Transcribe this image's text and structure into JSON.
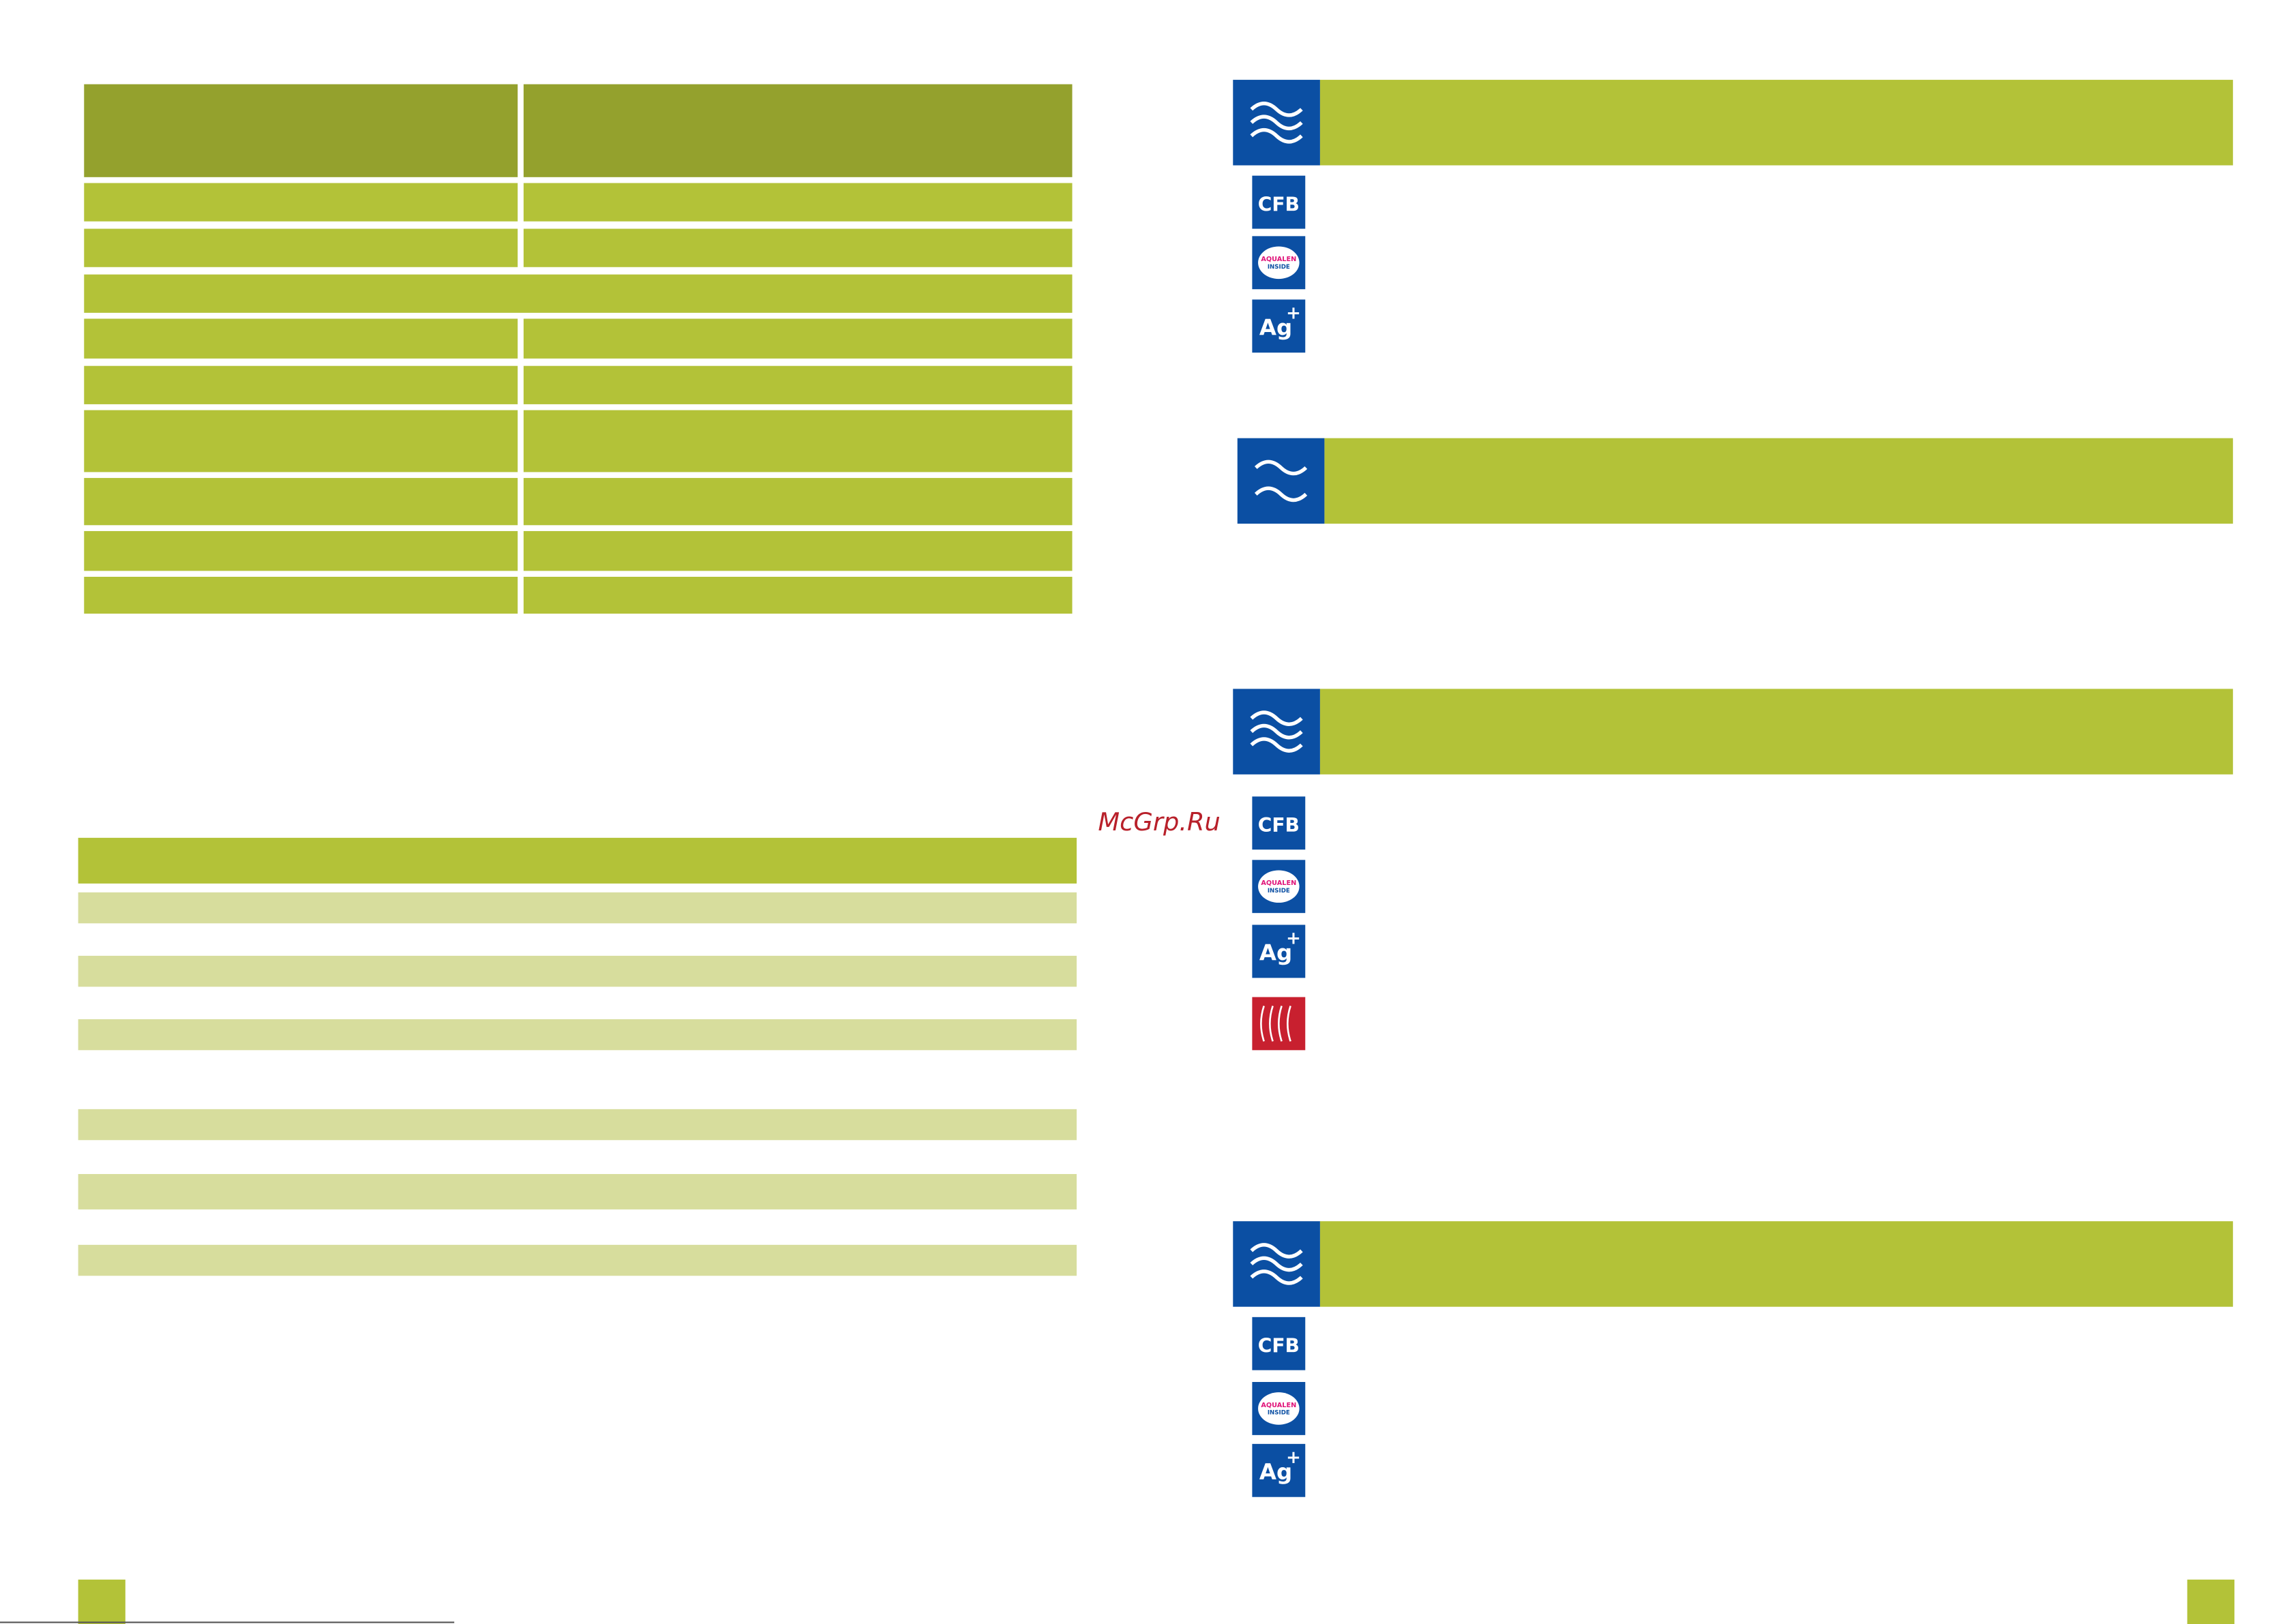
{
  "watermark": "McGrp.Ru",
  "sections": [
    {
      "badges": [
        {
          "main": "CFB"
        },
        {
          "main": "AQUALEN",
          "sub": "INSIDE"
        },
        {
          "main": "Ag",
          "sup": "+"
        }
      ]
    },
    {
      "badges": []
    },
    {
      "badges": [
        {
          "main": "CFB"
        },
        {
          "main": "AQUALEN",
          "sub": "INSIDE"
        },
        {
          "main": "Ag",
          "sup": "+"
        },
        {
          "kind": "red"
        }
      ]
    },
    {
      "badges": [
        {
          "main": "CFB"
        },
        {
          "main": "AQUALEN",
          "sub": "INSIDE"
        },
        {
          "main": "Ag",
          "sup": "+"
        }
      ]
    }
  ]
}
